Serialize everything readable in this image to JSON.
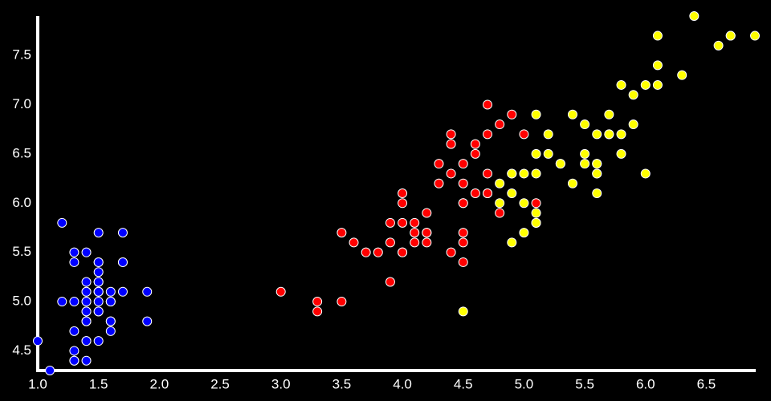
{
  "chart_data": {
    "type": "scatter",
    "xlim": [
      1.0,
      6.9
    ],
    "ylim": [
      4.3,
      7.9
    ],
    "xticks": [
      {
        "value": 1.0,
        "label": "1.0"
      },
      {
        "value": 1.5,
        "label": "1.5"
      },
      {
        "value": 2.0,
        "label": "2.0"
      },
      {
        "value": 2.5,
        "label": "2.5"
      },
      {
        "value": 3.0,
        "label": "3.0"
      },
      {
        "value": 3.5,
        "label": "3.5"
      },
      {
        "value": 4.0,
        "label": "4.0"
      },
      {
        "value": 4.5,
        "label": "4.5"
      },
      {
        "value": 5.0,
        "label": "5.0"
      },
      {
        "value": 5.5,
        "label": "5.5"
      },
      {
        "value": 6.0,
        "label": "6.0"
      },
      {
        "value": 6.5,
        "label": "6.5"
      }
    ],
    "yticks": [
      {
        "value": 4.5,
        "label": "4.5"
      },
      {
        "value": 5.0,
        "label": "5.0"
      },
      {
        "value": 5.5,
        "label": "5.5"
      },
      {
        "value": 6.0,
        "label": "6.0"
      },
      {
        "value": 6.5,
        "label": "6.5"
      },
      {
        "value": 7.0,
        "label": "7.0"
      },
      {
        "value": 7.5,
        "label": "7.5"
      }
    ],
    "series": [
      {
        "color": "#0000ff",
        "x": [
          1.4,
          1.4,
          1.3,
          1.5,
          1.4,
          1.7,
          1.4,
          1.5,
          1.4,
          1.5,
          1.5,
          1.6,
          1.4,
          1.1,
          1.2,
          1.5,
          1.3,
          1.4,
          1.7,
          1.5,
          1.7,
          1.5,
          1.0,
          1.7,
          1.9,
          1.6,
          1.6,
          1.5,
          1.4,
          1.6,
          1.6,
          1.5,
          1.5,
          1.4,
          1.5,
          1.2,
          1.3,
          1.4,
          1.3,
          1.5,
          1.3,
          1.3,
          1.3,
          1.6,
          1.9,
          1.4,
          1.6,
          1.4,
          1.5,
          1.4
        ],
        "y": [
          5.1,
          4.9,
          4.7,
          4.6,
          5.0,
          5.4,
          4.6,
          5.0,
          4.4,
          4.9,
          5.4,
          4.8,
          4.8,
          4.3,
          5.8,
          5.7,
          5.4,
          5.1,
          5.7,
          5.1,
          5.4,
          5.1,
          4.6,
          5.1,
          4.8,
          5.0,
          5.0,
          5.2,
          5.2,
          4.7,
          4.8,
          5.4,
          5.2,
          5.5,
          4.9,
          5.0,
          5.5,
          4.9,
          4.4,
          5.1,
          5.0,
          4.5,
          4.4,
          5.0,
          5.1,
          4.8,
          5.1,
          4.6,
          5.3,
          5.0
        ]
      },
      {
        "color": "#ff0000",
        "x": [
          4.7,
          4.5,
          4.9,
          4.0,
          4.6,
          4.5,
          4.7,
          3.3,
          4.6,
          3.9,
          3.5,
          4.2,
          4.0,
          4.7,
          3.6,
          4.4,
          4.5,
          4.1,
          4.5,
          3.9,
          4.8,
          4.0,
          4.9,
          4.7,
          4.3,
          4.4,
          4.8,
          5.0,
          4.5,
          3.5,
          3.8,
          3.7,
          3.9,
          5.1,
          4.5,
          4.5,
          4.7,
          4.4,
          4.1,
          4.0,
          4.4,
          4.6,
          4.0,
          3.3,
          4.2,
          4.2,
          4.2,
          4.3,
          3.0,
          4.1
        ],
        "y": [
          7.0,
          6.4,
          6.9,
          5.5,
          6.5,
          5.7,
          6.3,
          4.9,
          6.6,
          5.2,
          5.0,
          5.9,
          6.0,
          6.1,
          5.6,
          6.7,
          5.6,
          5.8,
          6.2,
          5.6,
          5.9,
          6.1,
          6.3,
          6.1,
          6.4,
          6.6,
          6.8,
          6.7,
          6.0,
          5.7,
          5.5,
          5.5,
          5.8,
          6.0,
          5.4,
          6.0,
          6.7,
          6.3,
          5.6,
          5.5,
          5.5,
          6.1,
          5.8,
          5.0,
          5.6,
          5.7,
          5.7,
          6.2,
          5.1,
          5.7
        ]
      },
      {
        "color": "#ffff00",
        "x": [
          6.0,
          5.1,
          5.9,
          5.6,
          5.8,
          6.6,
          4.5,
          6.3,
          5.8,
          6.1,
          5.1,
          5.3,
          5.5,
          5.0,
          5.1,
          5.3,
          5.5,
          6.7,
          6.9,
          5.0,
          5.7,
          4.9,
          6.7,
          4.9,
          5.7,
          6.0,
          4.8,
          4.9,
          5.6,
          5.8,
          6.1,
          6.4,
          5.6,
          5.1,
          5.6,
          6.1,
          5.6,
          5.5,
          4.8,
          5.4,
          5.6,
          5.1,
          5.1,
          5.9,
          5.7,
          5.2,
          5.0,
          5.2,
          5.4,
          5.1
        ],
        "y": [
          6.3,
          5.8,
          7.1,
          6.3,
          6.5,
          7.6,
          4.9,
          7.3,
          6.7,
          7.2,
          6.5,
          6.4,
          6.8,
          5.7,
          5.8,
          6.4,
          6.5,
          7.7,
          7.7,
          6.0,
          6.9,
          5.6,
          7.7,
          6.3,
          6.7,
          7.2,
          6.2,
          6.1,
          6.4,
          7.2,
          7.4,
          7.9,
          6.4,
          6.3,
          6.1,
          7.7,
          6.3,
          6.4,
          6.0,
          6.9,
          6.7,
          6.9,
          5.8,
          6.8,
          6.7,
          6.7,
          6.3,
          6.5,
          6.2,
          5.9
        ]
      }
    ]
  }
}
